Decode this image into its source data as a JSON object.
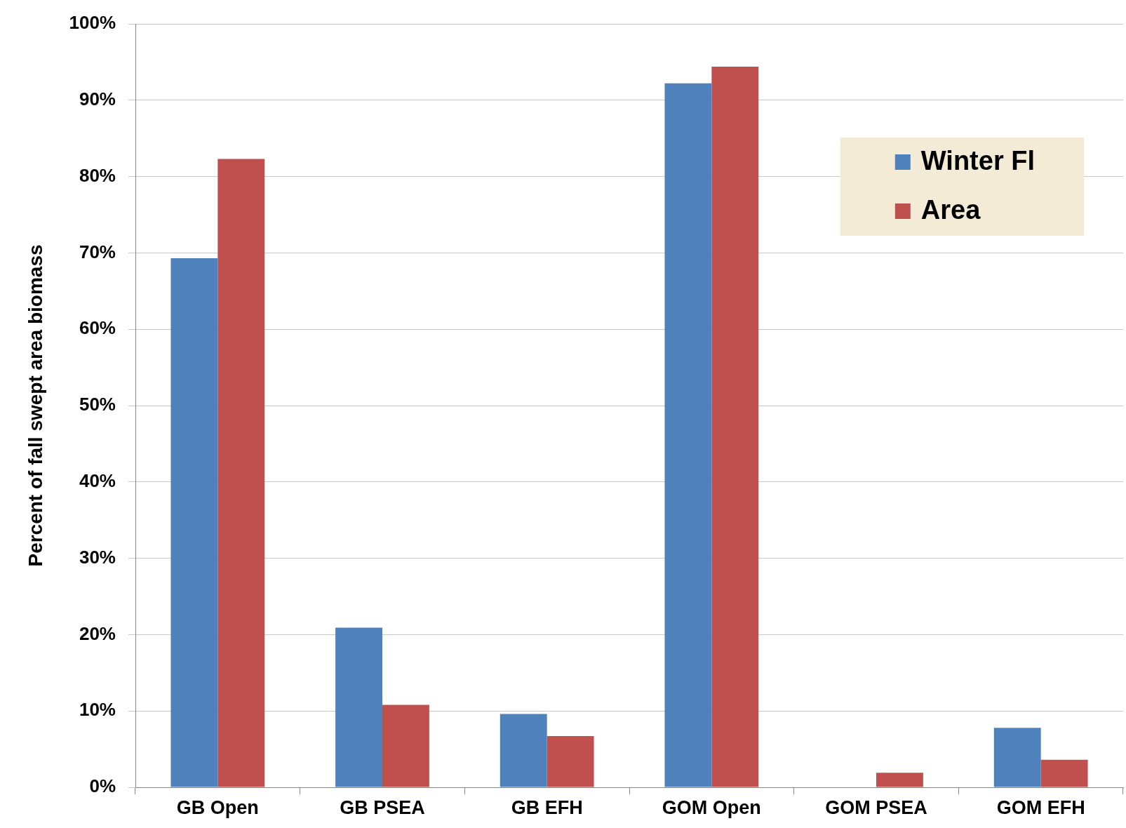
{
  "chart_data": {
    "type": "bar",
    "ylabel": "Percent of fall swept area biomass",
    "categories": [
      "GB Open",
      "GB PSEA",
      "GB EFH",
      "GOM Open",
      "GOM PSEA",
      "GOM EFH"
    ],
    "series": [
      {
        "name": "Winter Fl",
        "color": "#4f81bd",
        "values": [
          69.3,
          20.9,
          9.6,
          92.2,
          0,
          7.8
        ]
      },
      {
        "name": "Area",
        "color": "#c0504d",
        "values": [
          82.3,
          10.8,
          6.7,
          94.4,
          1.9,
          3.6
        ]
      }
    ],
    "ylim": [
      0,
      100
    ],
    "yticks": [
      {
        "value": 0,
        "label": "0%"
      },
      {
        "value": 10,
        "label": "10%"
      },
      {
        "value": 20,
        "label": "20%"
      },
      {
        "value": 30,
        "label": "30%"
      },
      {
        "value": 40,
        "label": "40%"
      },
      {
        "value": 50,
        "label": "50%"
      },
      {
        "value": 60,
        "label": "60%"
      },
      {
        "value": 70,
        "label": "70%"
      },
      {
        "value": 80,
        "label": "80%"
      },
      {
        "value": 90,
        "label": "90%"
      },
      {
        "value": 100,
        "label": "100%"
      }
    ],
    "grid": "y",
    "legend": "top right"
  }
}
